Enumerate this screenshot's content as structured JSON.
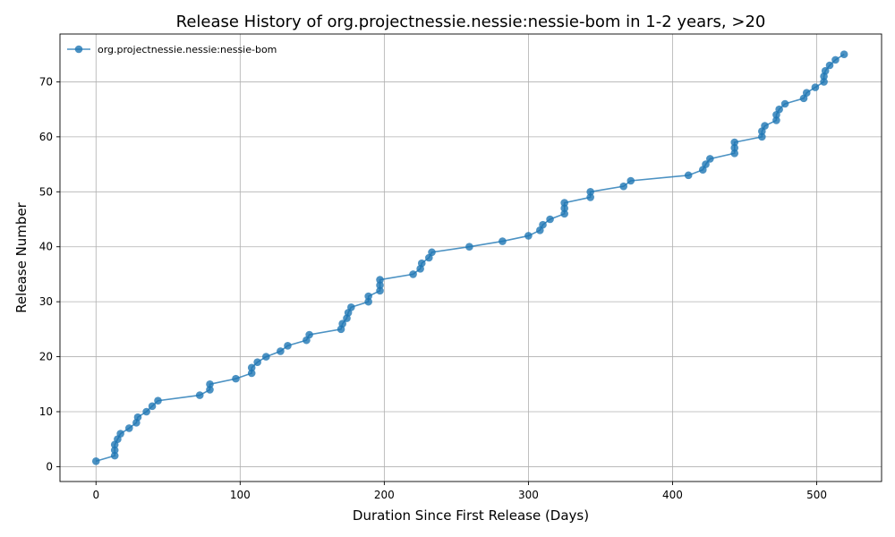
{
  "chart_data": {
    "type": "line",
    "title": "Release History of org.projectnessie.nessie:nessie-bom in 1-2 years, >20",
    "xlabel": "Duration Since First Release (Days)",
    "ylabel": "Release Number",
    "xlim": [
      -25,
      545
    ],
    "ylim": [
      -2.7,
      78.7
    ],
    "xticks": [
      0,
      100,
      200,
      300,
      400,
      500
    ],
    "yticks": [
      0,
      10,
      20,
      30,
      40,
      50,
      60,
      70
    ],
    "grid": true,
    "legend_position": "top-left",
    "series": [
      {
        "name": "org.projectnessie.nessie:nessie-bom",
        "color": "#1f77b4",
        "marker": "circle",
        "x": [
          0,
          13,
          13,
          13,
          15,
          17,
          23,
          28,
          29,
          35,
          39,
          43,
          72,
          79,
          79,
          97,
          108,
          108,
          112,
          118,
          128,
          133,
          146,
          148,
          170,
          171,
          174,
          175,
          177,
          189,
          189,
          197,
          197,
          197,
          220,
          225,
          226,
          231,
          233,
          259,
          282,
          300,
          308,
          310,
          315,
          325,
          325,
          325,
          343,
          343,
          366,
          371,
          411,
          421,
          423,
          426,
          443,
          443,
          443,
          462,
          462,
          464,
          472,
          472,
          474,
          478,
          491,
          493,
          499,
          505,
          505,
          506,
          509,
          513,
          519
        ],
        "y": [
          1,
          2,
          3,
          4,
          5,
          6,
          7,
          8,
          9,
          10,
          11,
          12,
          13,
          14,
          15,
          16,
          17,
          18,
          19,
          20,
          21,
          22,
          23,
          24,
          25,
          26,
          27,
          28,
          29,
          30,
          31,
          32,
          33,
          34,
          35,
          36,
          37,
          38,
          39,
          40,
          41,
          42,
          43,
          44,
          45,
          46,
          47,
          48,
          49,
          50,
          51,
          52,
          53,
          54,
          55,
          56,
          57,
          58,
          59,
          60,
          61,
          62,
          63,
          64,
          65,
          66,
          67,
          68,
          69,
          70,
          71,
          72,
          73,
          74,
          75
        ]
      }
    ]
  }
}
